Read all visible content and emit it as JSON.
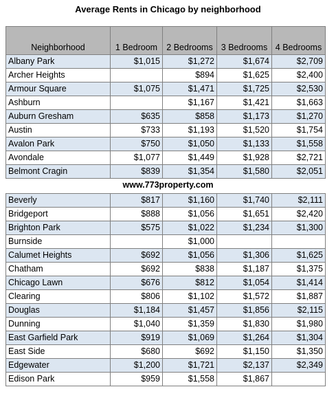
{
  "title": "Average Rents in Chicago by neighborhood",
  "website": "www.773property.com",
  "columns": [
    "Neighborhood",
    "1 Bedroom",
    "2 Bedrooms",
    "3 Bedrooms",
    "4 Bedrooms"
  ],
  "top_rows": [
    [
      "Albany Park",
      "$1,015",
      "$1,272",
      "$1,674",
      "$2,709"
    ],
    [
      "Archer Heights",
      "",
      "$894",
      "$1,625",
      "$2,400"
    ],
    [
      "Armour Square",
      "$1,075",
      "$1,471",
      "$1,725",
      "$2,530"
    ],
    [
      "Ashburn",
      "",
      "$1,167",
      "$1,421",
      "$1,663"
    ],
    [
      "Auburn Gresham",
      "$635",
      "$858",
      "$1,173",
      "$1,270"
    ],
    [
      "Austin",
      "$733",
      "$1,193",
      "$1,520",
      "$1,754"
    ],
    [
      "Avalon Park",
      "$750",
      "$1,050",
      "$1,133",
      "$1,558"
    ],
    [
      "Avondale",
      "$1,077",
      "$1,449",
      "$1,928",
      "$2,721"
    ],
    [
      "Belmont Cragin",
      "$839",
      "$1,354",
      "$1,580",
      "$2,051"
    ]
  ],
  "bottom_rows": [
    [
      "Beverly",
      "$817",
      "$1,160",
      "$1,740",
      "$2,111"
    ],
    [
      "Bridgeport",
      "$888",
      "$1,056",
      "$1,651",
      "$2,420"
    ],
    [
      "Brighton Park",
      "$575",
      "$1,022",
      "$1,234",
      "$1,300"
    ],
    [
      "Burnside",
      "",
      "$1,000",
      "",
      ""
    ],
    [
      "Calumet Heights",
      "$692",
      "$1,056",
      "$1,306",
      "$1,625"
    ],
    [
      "Chatham",
      "$692",
      "$838",
      "$1,187",
      "$1,375"
    ],
    [
      "Chicago Lawn",
      "$676",
      "$812",
      "$1,054",
      "$1,414"
    ],
    [
      "Clearing",
      "$806",
      "$1,102",
      "$1,572",
      "$1,887"
    ],
    [
      "Douglas",
      "$1,184",
      "$1,457",
      "$1,856",
      "$2,115"
    ],
    [
      "Dunning",
      "$1,040",
      "$1,359",
      "$1,830",
      "$1,980"
    ],
    [
      "East Garfield Park",
      "$919",
      "$1,069",
      "$1,264",
      "$1,304"
    ],
    [
      "East Side",
      "$680",
      "$692",
      "$1,150",
      "$1,350"
    ],
    [
      "Edgewater",
      "$1,200",
      "$1,721",
      "$2,137",
      "$2,349"
    ],
    [
      "Edison Park",
      "$959",
      "$1,558",
      "$1,867",
      ""
    ]
  ],
  "colors": {
    "header_fill": "#b8b8b8",
    "band_fill": "#dce6f1",
    "grid_line": "#7f7f7f"
  }
}
